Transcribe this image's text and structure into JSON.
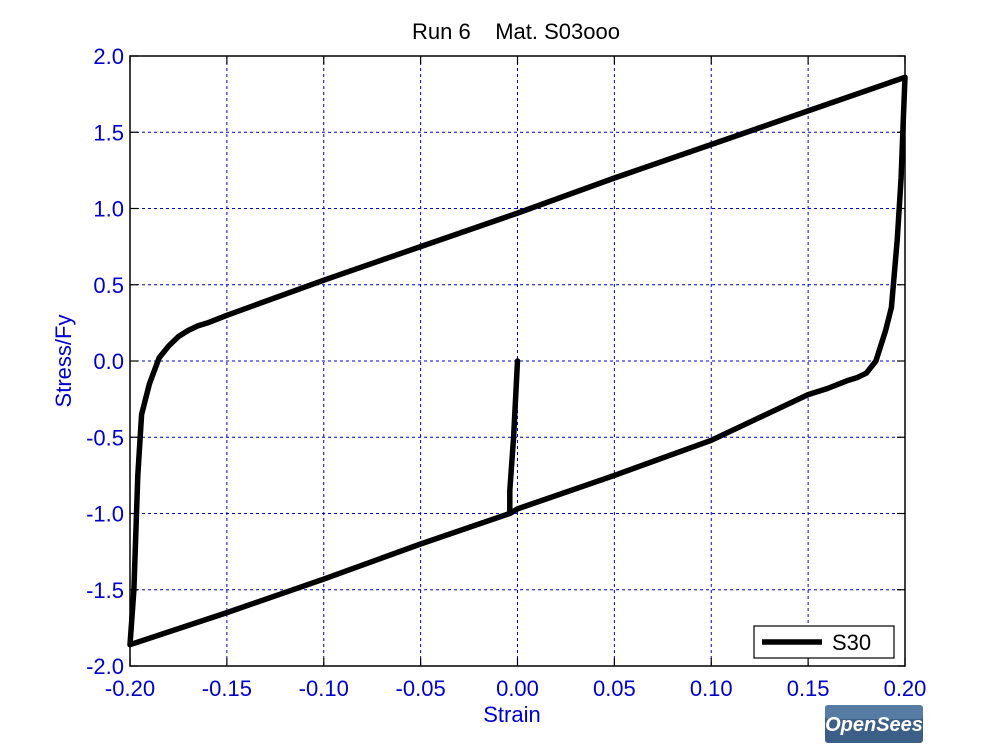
{
  "chart_data": {
    "type": "line",
    "title": "Run 6    Mat. S03ooo",
    "xlabel": "Strain",
    "ylabel": "Stress/Fy",
    "xlim": [
      -0.2,
      0.2
    ],
    "ylim": [
      -2.0,
      2.0
    ],
    "xticks": [
      "-0.20",
      "-0.15",
      "-0.10",
      "-0.05",
      "0.00",
      "0.05",
      "0.10",
      "0.15",
      "0.20"
    ],
    "yticks": [
      "2.0",
      "1.5",
      "1.0",
      "0.5",
      "0.0",
      "-0.5",
      "-1.0",
      "-1.5",
      "-2.0"
    ],
    "grid": true,
    "legend_position": "bottom-right",
    "colors": {
      "axis_text": "#0000cc",
      "grid": "#0000cc",
      "line": "#000000"
    },
    "series": [
      {
        "name": "S30",
        "x": [
          0.0,
          -0.002,
          -0.004,
          -0.004,
          -0.05,
          -0.1,
          -0.15,
          -0.2,
          -0.2,
          -0.198,
          -0.196,
          -0.194,
          -0.19,
          -0.185,
          -0.18,
          -0.175,
          -0.17,
          -0.165,
          -0.16,
          -0.15,
          -0.1,
          -0.05,
          0.0,
          0.05,
          0.1,
          0.15,
          0.2,
          0.2,
          0.199,
          0.198,
          0.196,
          0.193,
          0.19,
          0.185,
          0.18,
          0.175,
          0.17,
          0.16,
          0.15,
          0.1,
          0.05,
          0.0,
          -0.004
        ],
        "y": [
          0.0,
          -0.5,
          -0.85,
          -1.0,
          -1.2,
          -1.43,
          -1.65,
          -1.86,
          -1.86,
          -1.5,
          -0.75,
          -0.35,
          -0.15,
          0.02,
          0.1,
          0.16,
          0.2,
          0.23,
          0.25,
          0.3,
          0.53,
          0.75,
          0.97,
          1.2,
          1.42,
          1.64,
          1.86,
          1.86,
          1.55,
          1.2,
          0.8,
          0.35,
          0.2,
          0.0,
          -0.08,
          -0.11,
          -0.13,
          -0.18,
          -0.22,
          -0.52,
          -0.75,
          -0.97,
          -1.0
        ]
      }
    ]
  },
  "logo": {
    "text": "OpenSees"
  }
}
